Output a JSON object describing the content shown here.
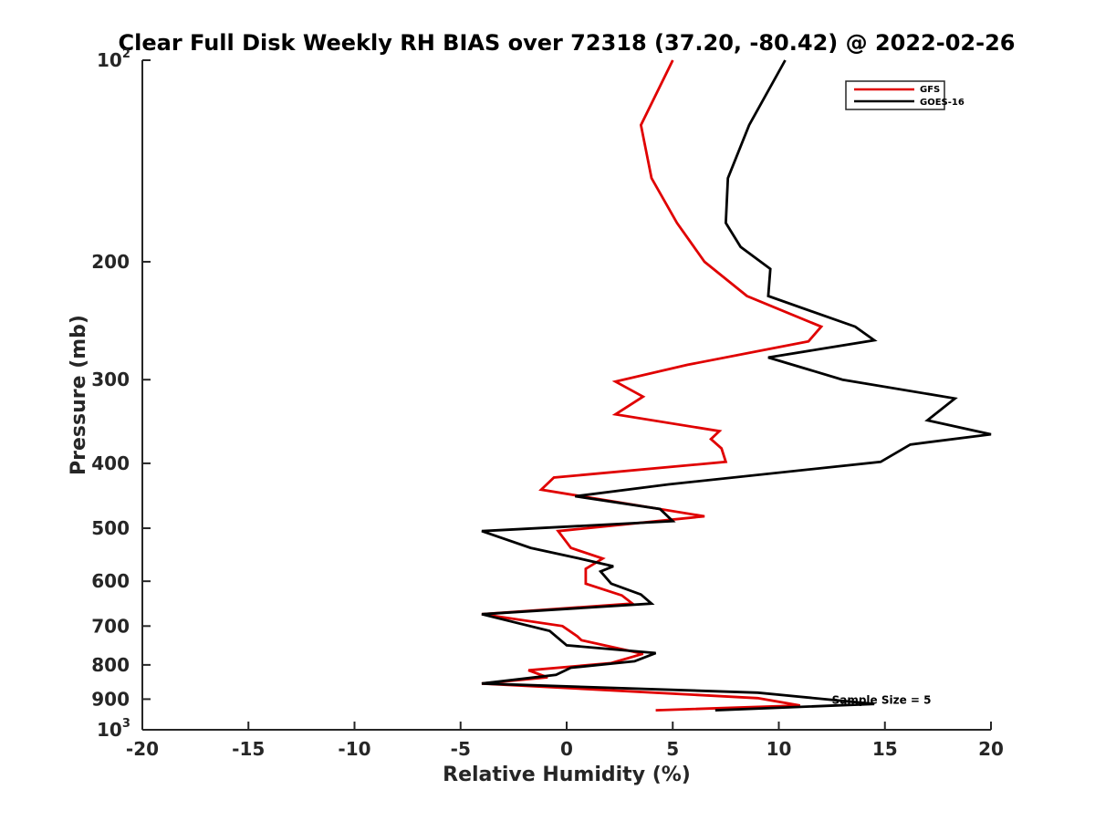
{
  "chart_data": {
    "type": "line",
    "title": "Clear Full Disk Weekly RH BIAS over 72318 (37.20, -80.42) @ 2022-02-26",
    "xlabel": "Relative Humidity (%)",
    "ylabel": "Pressure (mb)",
    "xlim": [
      -20,
      20
    ],
    "ylim": [
      100,
      1000
    ],
    "y_scale": "log",
    "y_reversed": true,
    "x_ticks": [
      "-20",
      "-15",
      "-10",
      "-5",
      "0",
      "5",
      "10",
      "15",
      "20"
    ],
    "y_ticks": [
      {
        "value": 100,
        "base": "10",
        "exp": "2"
      },
      {
        "value": 200,
        "label": "200"
      },
      {
        "value": 300,
        "label": "300"
      },
      {
        "value": 400,
        "label": "400"
      },
      {
        "value": 500,
        "label": "500"
      },
      {
        "value": 600,
        "label": "600"
      },
      {
        "value": 700,
        "label": "700"
      },
      {
        "value": 800,
        "label": "800"
      },
      {
        "value": 900,
        "label": "900"
      },
      {
        "value": 1000,
        "base": "10",
        "exp": "3"
      }
    ],
    "grid": false,
    "legend_position": "top-right",
    "series": [
      {
        "name": "GFS",
        "color": "#e00000",
        "points": [
          [
            5.0,
            100
          ],
          [
            3.5,
            125
          ],
          [
            4.0,
            150
          ],
          [
            5.2,
            175
          ],
          [
            6.5,
            200
          ],
          [
            8.5,
            225
          ],
          [
            12.0,
            250
          ],
          [
            11.4,
            263
          ],
          [
            5.7,
            285
          ],
          [
            2.3,
            302
          ],
          [
            3.6,
            318
          ],
          [
            2.3,
            338
          ],
          [
            7.2,
            358
          ],
          [
            6.8,
            368
          ],
          [
            7.3,
            380
          ],
          [
            7.5,
            398
          ],
          [
            -0.6,
            420
          ],
          [
            -1.2,
            438
          ],
          [
            6.5,
            480
          ],
          [
            -0.4,
            505
          ],
          [
            0.2,
            535
          ],
          [
            1.7,
            555
          ],
          [
            0.9,
            575
          ],
          [
            0.9,
            605
          ],
          [
            2.6,
            630
          ],
          [
            3.1,
            648
          ],
          [
            -4.0,
            672
          ],
          [
            -0.2,
            700
          ],
          [
            0.5,
            725
          ],
          [
            0.7,
            735
          ],
          [
            3.6,
            770
          ],
          [
            2.1,
            795
          ],
          [
            -1.8,
            815
          ],
          [
            -0.9,
            835
          ],
          [
            -4.0,
            853
          ],
          [
            9.0,
            897
          ],
          [
            11.0,
            920
          ],
          [
            4.2,
            935
          ]
        ]
      },
      {
        "name": "GOES-16",
        "color": "#000000",
        "points": [
          [
            10.3,
            100
          ],
          [
            8.6,
            125
          ],
          [
            7.6,
            150
          ],
          [
            7.5,
            175
          ],
          [
            8.2,
            190
          ],
          [
            9.6,
            205
          ],
          [
            9.5,
            225
          ],
          [
            13.6,
            250
          ],
          [
            14.5,
            262
          ],
          [
            9.5,
            278
          ],
          [
            13.0,
            300
          ],
          [
            18.3,
            320
          ],
          [
            17.0,
            345
          ],
          [
            20.0,
            362
          ],
          [
            16.2,
            375
          ],
          [
            14.8,
            398
          ],
          [
            4.8,
            430
          ],
          [
            0.4,
            448
          ],
          [
            4.4,
            468
          ],
          [
            5.0,
            488
          ],
          [
            -4.0,
            505
          ],
          [
            -1.7,
            535
          ],
          [
            0.6,
            555
          ],
          [
            2.2,
            570
          ],
          [
            1.6,
            580
          ],
          [
            2.1,
            605
          ],
          [
            3.5,
            628
          ],
          [
            4.0,
            648
          ],
          [
            -4.0,
            672
          ],
          [
            -0.8,
            712
          ],
          [
            0.0,
            748
          ],
          [
            4.2,
            768
          ],
          [
            3.2,
            790
          ],
          [
            0.2,
            808
          ],
          [
            -0.5,
            828
          ],
          [
            -4.0,
            853
          ],
          [
            9.0,
            880
          ],
          [
            14.5,
            915
          ],
          [
            7.0,
            935
          ]
        ]
      }
    ],
    "annotations": [
      {
        "text": "Sample Size = 5",
        "x": 12.5,
        "y": 900
      }
    ]
  }
}
